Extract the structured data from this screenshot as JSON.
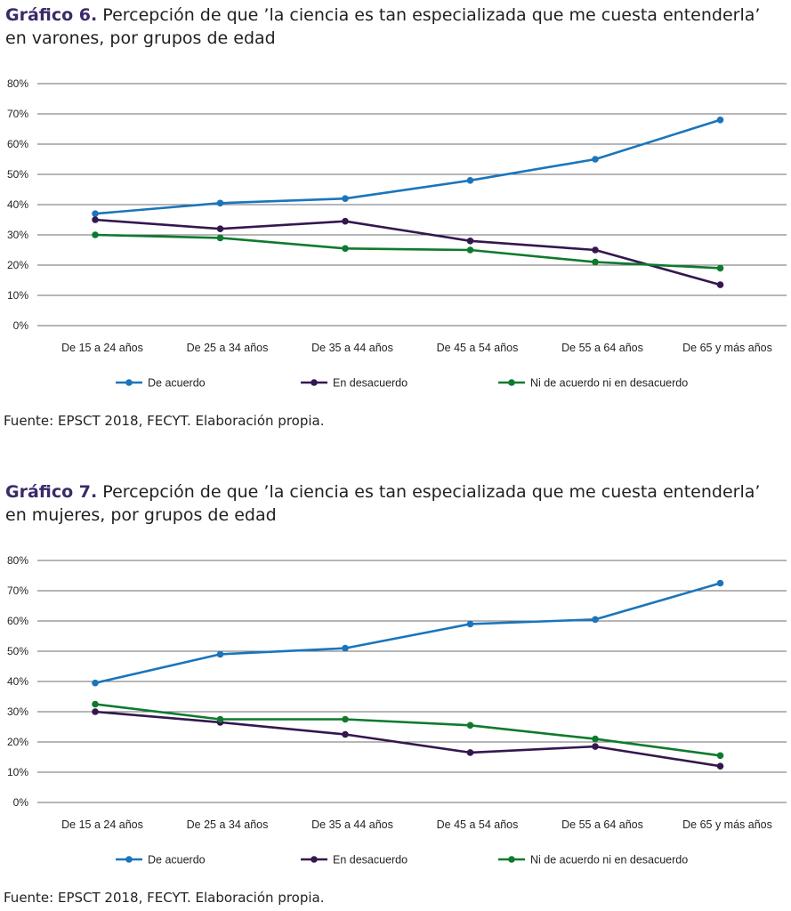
{
  "figures": [
    {
      "title_label": "Gráfico 6.",
      "title_line1": "Percepción de que ’la ciencia es tan especializada que me cuesta entenderla’",
      "title_line2": "en varones, por grupos de edad",
      "source": "Fuente: EPSCT 2018, FECYT. Elaboración propia."
    },
    {
      "title_label": "Gráfico 7.",
      "title_line1": "Percepción de que ’la ciencia es tan especializada que me cuesta entenderla’",
      "title_line2": "en mujeres, por grupos de edad",
      "source": "Fuente: EPSCT 2018, FECYT. Elaboración propia."
    }
  ],
  "chart_data": [
    {
      "type": "line",
      "title": "Percepción de que ’la ciencia es tan especializada que me cuesta entenderla’ en varones, por grupos de edad",
      "categories": [
        "De 15 a 24 años",
        "De 25 a 34 años",
        "De 35 a 44 años",
        "De 45 a 54 años",
        "De 55 a 64 años",
        "De 65 y más años"
      ],
      "ylim": [
        0,
        80
      ],
      "yticks": [
        "0%",
        "10%",
        "20%",
        "30%",
        "40%",
        "50%",
        "60%",
        "70%",
        "80%"
      ],
      "grid": true,
      "legend_position": "bottom",
      "series": [
        {
          "name": "De acuerdo",
          "color": "#1b75bb",
          "values": [
            37,
            40.5,
            42,
            48,
            55,
            68
          ]
        },
        {
          "name": "En desacuerdo",
          "color": "#35174f",
          "values": [
            35,
            32,
            34.5,
            28,
            25,
            13.5
          ]
        },
        {
          "name": "Ni de acuerdo ni en desacuerdo",
          "color": "#0f7a2e",
          "values": [
            30,
            29,
            25.5,
            25,
            21,
            19
          ]
        }
      ]
    },
    {
      "type": "line",
      "title": "Percepción de que ’la ciencia es tan especializada que me cuesta entenderla’ en mujeres, por grupos de edad",
      "categories": [
        "De 15 a 24 años",
        "De 25 a 34 años",
        "De 35 a 44 años",
        "De 45 a 54 años",
        "De 55 a 64 años",
        "De 65 y más años"
      ],
      "ylim": [
        0,
        80
      ],
      "yticks": [
        "0%",
        "10%",
        "20%",
        "30%",
        "40%",
        "50%",
        "60%",
        "70%",
        "80%"
      ],
      "grid": true,
      "legend_position": "bottom",
      "series": [
        {
          "name": "De acuerdo",
          "color": "#1b75bb",
          "values": [
            39.5,
            49,
            51,
            59,
            60.5,
            72.5
          ]
        },
        {
          "name": "En desacuerdo",
          "color": "#35174f",
          "values": [
            30,
            26.5,
            22.5,
            16.5,
            18.5,
            12
          ]
        },
        {
          "name": "Ni de acuerdo ni en desacuerdo",
          "color": "#0f7a2e",
          "values": [
            32.5,
            27.5,
            27.5,
            25.5,
            21,
            15.5
          ]
        }
      ]
    }
  ]
}
